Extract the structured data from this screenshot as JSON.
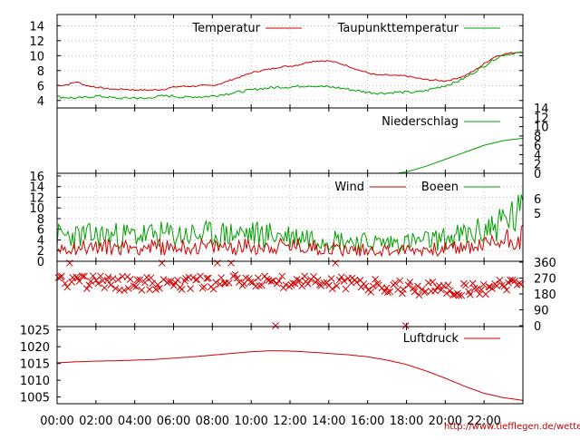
{
  "credit": "http://www.tiefflegen.de/wetter/",
  "colors": {
    "red": "#d00000",
    "green": "#00a000",
    "grid": "#999999",
    "axis": "#000000"
  },
  "chart_data": [
    {
      "type": "line",
      "panel": "temperature",
      "ylim": [
        3,
        15.5
      ],
      "yticks": [
        "4",
        "6",
        "8",
        "10",
        "12",
        "14"
      ],
      "grid": true,
      "legend_position": "top",
      "x_hours": [
        0,
        0.5,
        1,
        1.5,
        2,
        2.5,
        3,
        3.5,
        4,
        4.5,
        5,
        5.5,
        6,
        6.5,
        7,
        7.5,
        8,
        8.5,
        9,
        9.5,
        10,
        10.5,
        11,
        11.5,
        12,
        12.5,
        13,
        13.5,
        14,
        14.5,
        15,
        15.5,
        16,
        16.5,
        17,
        17.5,
        18,
        18.5,
        19,
        19.5,
        20,
        20.5,
        21,
        21.5,
        22,
        22.5,
        23,
        23.5,
        24
      ],
      "series": [
        {
          "name": "Temperatur",
          "color": "#d00000",
          "values": [
            6.0,
            6.1,
            6.5,
            6.0,
            5.8,
            5.6,
            5.5,
            5.5,
            5.4,
            5.4,
            5.4,
            5.5,
            5.8,
            5.9,
            5.9,
            6.0,
            6.0,
            6.3,
            6.8,
            7.2,
            7.7,
            8.0,
            8.2,
            8.5,
            8.6,
            8.8,
            9.2,
            9.3,
            9.3,
            9.0,
            8.6,
            8.1,
            7.7,
            7.4,
            7.4,
            7.3,
            7.3,
            7.0,
            6.8,
            6.7,
            6.6,
            6.9,
            7.3,
            8.0,
            8.9,
            9.8,
            10.2,
            10.4,
            10.5
          ]
        },
        {
          "name": "Taupunkttemperatur",
          "color": "#00a000",
          "values": [
            4.5,
            4.4,
            4.3,
            4.4,
            4.6,
            4.5,
            4.3,
            4.3,
            4.4,
            4.2,
            4.5,
            4.6,
            4.6,
            4.4,
            4.5,
            4.5,
            4.6,
            4.8,
            5.0,
            5.2,
            5.4,
            5.6,
            5.7,
            5.8,
            5.8,
            5.9,
            6.0,
            5.9,
            5.8,
            5.7,
            5.5,
            5.3,
            5.1,
            5.0,
            5.0,
            5.1,
            5.1,
            5.1,
            5.3,
            5.7,
            6.0,
            6.4,
            7.0,
            7.8,
            8.6,
            9.5,
            10.1,
            10.3,
            10.4
          ]
        }
      ]
    },
    {
      "type": "line",
      "panel": "precipitation",
      "ylim": [
        0,
        14
      ],
      "yticks": [
        "0",
        "2",
        "4",
        "6",
        "8",
        "10",
        "12",
        "14"
      ],
      "x_hours": [
        0,
        17.5,
        18,
        19,
        20,
        21,
        22,
        23,
        24
      ],
      "series": [
        {
          "name": "Niederschlag",
          "color": "#00a000",
          "values": [
            0,
            0,
            0.3,
            1.5,
            3.0,
            4.5,
            6.0,
            7.0,
            7.5
          ]
        }
      ]
    },
    {
      "type": "line",
      "panel": "wind",
      "ylim": [
        0,
        16.5
      ],
      "yticks": [
        "0",
        "2",
        "4",
        "6",
        "8",
        "10",
        "12",
        "14",
        "16"
      ],
      "yticks_right": [
        "5",
        "6"
      ],
      "grid": true,
      "series": [
        {
          "name": "Wind",
          "color": "#d00000",
          "mean": [
            2.5,
            2.5,
            2.5,
            2.5,
            2.5,
            2.5,
            2.5,
            2.5,
            2.5,
            2.5,
            2.5,
            2.5,
            2.6,
            2.6,
            2.6,
            2.7,
            2.5,
            2.4,
            2.2,
            2.0,
            2.0,
            2.0,
            2.0,
            2.0,
            2.1,
            2.2,
            2.4,
            2.6,
            3.2,
            4.0,
            4.5
          ]
        },
        {
          "name": "Boeen",
          "color": "#00a000",
          "mean": [
            4.5,
            4.5,
            4.5,
            4.6,
            4.6,
            4.6,
            4.6,
            4.7,
            4.7,
            4.7,
            4.7,
            4.8,
            4.9,
            4.8,
            4.7,
            4.5,
            4.4,
            4.2,
            3.9,
            3.6,
            3.4,
            3.3,
            3.4,
            3.5,
            3.7,
            4.0,
            4.5,
            5.0,
            6.2,
            7.5,
            8.3
          ]
        }
      ]
    },
    {
      "type": "scatter",
      "panel": "wind_direction",
      "ylim": [
        -5,
        365
      ],
      "yticks_right": [
        "0",
        "90",
        "180",
        "270",
        "360"
      ],
      "series": [
        {
          "name": "",
          "color": "#d00000",
          "values": [
            250,
            250,
            245,
            245,
            240,
            240,
            240,
            240,
            240,
            245,
            245,
            250,
            255,
            255,
            250,
            250,
            245,
            245,
            240,
            235,
            230,
            225,
            220,
            215,
            210,
            205,
            200,
            200,
            210,
            235,
            260
          ]
        }
      ]
    },
    {
      "type": "line",
      "panel": "pressure",
      "ylim": [
        1003,
        1026
      ],
      "yticks": [
        "1005",
        "1010",
        "1015",
        "1020",
        "1025"
      ],
      "x_hours": [
        0,
        1,
        2,
        3,
        4,
        5,
        6,
        7,
        8,
        9,
        10,
        11,
        12,
        13,
        14,
        15,
        16,
        17,
        18,
        19,
        20,
        21,
        22,
        23,
        24
      ],
      "xticks": [
        "00:00",
        "02:00",
        "04:00",
        "06:00",
        "08:00",
        "10:00",
        "12:00",
        "14:00",
        "16:00",
        "18:00",
        "20:00",
        "22:00"
      ],
      "series": [
        {
          "name": "Luftdruck",
          "color": "#d00000",
          "values": [
            1015.2,
            1015.5,
            1015.7,
            1015.8,
            1016.0,
            1016.2,
            1016.6,
            1017.0,
            1017.5,
            1018.0,
            1018.5,
            1018.8,
            1018.7,
            1018.4,
            1018.0,
            1017.6,
            1017.0,
            1016.0,
            1014.7,
            1012.8,
            1010.6,
            1008.2,
            1006.1,
            1004.8,
            1004.0
          ]
        }
      ]
    }
  ]
}
